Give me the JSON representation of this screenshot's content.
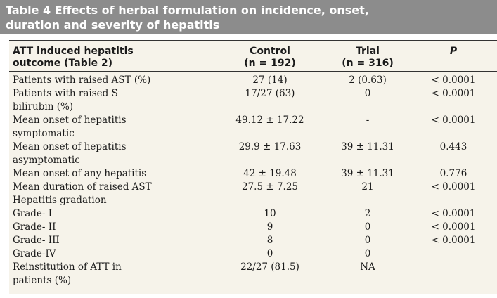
{
  "title": {
    "line1": "Table 4  Effects of herbal formulation on incidence, onset,",
    "line2": "duration and severity of hepatitis"
  },
  "header": {
    "label_line1": "ATT induced hepatitis",
    "label_line2": "outcome (Table 2)",
    "control_line1": "Control",
    "control_line2": "(n = 192)",
    "trial_line1": "Trial",
    "trial_line2": "(n = 316)",
    "p": "P"
  },
  "rows": [
    {
      "label": "Patients with raised AST (%)",
      "control": "27 (14)",
      "trial": "2 (0.63)",
      "p": "< 0.0001"
    },
    {
      "label": "Patients with raised S\nbilirubin (%)",
      "control": "17/27 (63)",
      "trial": "0",
      "p": "< 0.0001"
    },
    {
      "label": "Mean onset of hepatitis\nsymptomatic",
      "control": "49.12 ± 17.22",
      "trial": "-",
      "p": "< 0.0001"
    },
    {
      "label": "Mean onset of hepatitis\nasymptomatic",
      "control": "29.9 ± 17.63",
      "trial": "39 ± 11.31",
      "p": "0.443"
    },
    {
      "label": "Mean onset of any hepatitis",
      "control": "42 ± 19.48",
      "trial": "39 ± 11.31",
      "p": "0.776"
    },
    {
      "label": "Mean duration of raised AST",
      "control": "27.5 ± 7.25",
      "trial": "21",
      "p": "< 0.0001"
    },
    {
      "label": "Hepatitis gradation",
      "control": "",
      "trial": "",
      "p": ""
    },
    {
      "label": "Grade- I",
      "control": "10",
      "trial": "2",
      "p": "< 0.0001"
    },
    {
      "label": "Grade- II",
      "control": "9",
      "trial": "0",
      "p": "< 0.0001"
    },
    {
      "label": "Grade- III",
      "control": "8",
      "trial": "0",
      "p": "< 0.0001"
    },
    {
      "label": "Grade-IV",
      "control": "0",
      "trial": "0",
      "p": ""
    },
    {
      "label": "Reinstitution of ATT in\npatients (%)",
      "control": "22/27 (81.5)",
      "trial": "NA",
      "p": ""
    }
  ]
}
